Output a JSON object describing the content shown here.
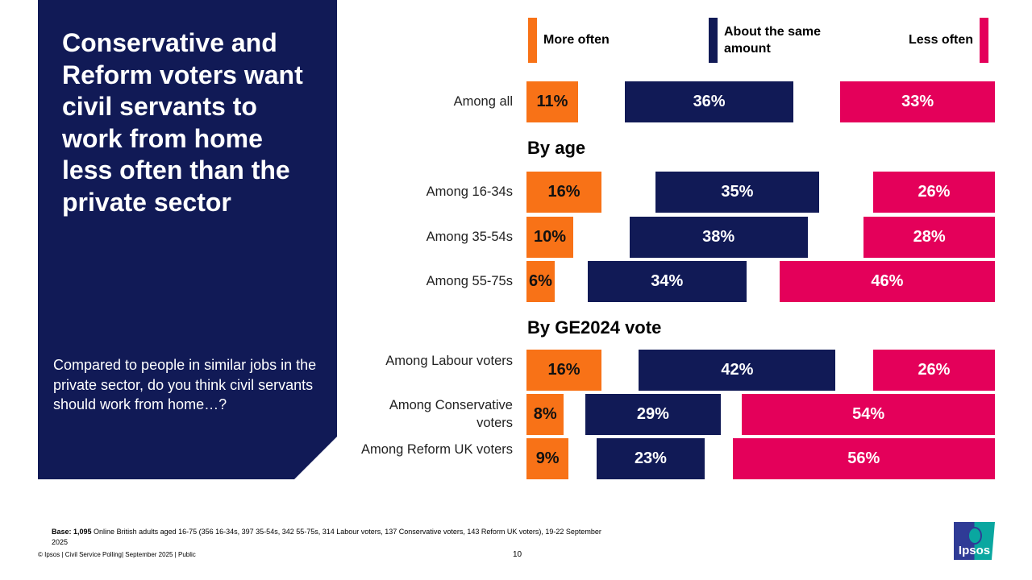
{
  "panel": {
    "title": "Conservative and Reform voters want civil servants to work from home less often than the private sector",
    "question": "Compared to people in similar jobs in the private sector, do you think civil servants should work from home…?"
  },
  "colors": {
    "more": "#f87217",
    "same": "#111a56",
    "less": "#e4005a"
  },
  "chart_data": {
    "type": "bar",
    "stacked": true,
    "xlim": [
      0,
      100
    ],
    "legend": [
      "More often",
      "About the same amount",
      "Less often"
    ],
    "sections": [
      "By age",
      "By GE2024 vote"
    ],
    "categories": [
      "Among all",
      "Among 16-34s",
      "Among 35-54s",
      "Among 55-75s",
      "Among Labour voters",
      "Among Conservative voters",
      "Among Reform UK voters"
    ],
    "series": [
      {
        "name": "More often",
        "values": [
          11,
          16,
          10,
          6,
          16,
          8,
          9
        ]
      },
      {
        "name": "About the same amount",
        "values": [
          36,
          35,
          38,
          34,
          42,
          29,
          23
        ]
      },
      {
        "name": "Less often",
        "values": [
          33,
          26,
          28,
          46,
          26,
          54,
          56
        ]
      }
    ]
  },
  "footer": {
    "base_label": "Base: 1,095",
    "base_text": " Online British adults aged 16-75 (356 16-34s, 397 35-54s, 342 55-75s, 314 Labour voters, 137 Conservative voters, 143 Reform UK voters), 19-22 September 2025",
    "copyright": "© Ipsos | Civil Service Polling| September 2025 | Public",
    "page": "10"
  },
  "logo": "Ipsos"
}
